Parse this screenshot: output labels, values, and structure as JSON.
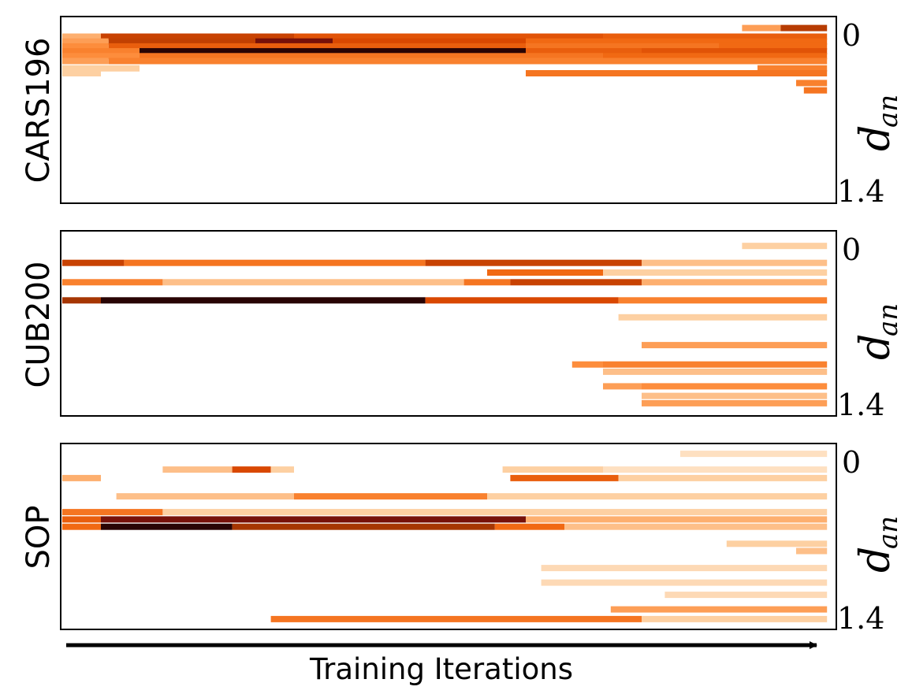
{
  "chart_data": [
    {
      "type": "heatmap",
      "panel": "CARS196",
      "xlabel": "Training Iterations",
      "ylabel_main": "d",
      "ylabel_sub": "an",
      "y_ticks": [
        "0",
        "1.4"
      ],
      "ylim": [
        0,
        1.4
      ],
      "rows": [
        {
          "y": 0.03,
          "segs": [
            [
              0.88,
              0.93,
              0.3
            ],
            [
              0.93,
              0.99,
              0.75
            ]
          ]
        },
        {
          "y": 0.1,
          "segs": [
            [
              0.0,
              0.05,
              0.25
            ],
            [
              0.05,
              0.3,
              0.7
            ],
            [
              0.3,
              0.7,
              0.6
            ],
            [
              0.7,
              0.99,
              0.55
            ]
          ]
        },
        {
          "y": 0.14,
          "segs": [
            [
              0.0,
              0.06,
              0.3
            ],
            [
              0.06,
              0.25,
              0.72
            ],
            [
              0.25,
              0.35,
              0.9
            ],
            [
              0.35,
              0.6,
              0.65
            ],
            [
              0.6,
              0.99,
              0.5
            ]
          ]
        },
        {
          "y": 0.18,
          "segs": [
            [
              0.0,
              0.06,
              0.35
            ],
            [
              0.06,
              0.6,
              0.55
            ],
            [
              0.6,
              0.85,
              0.45
            ],
            [
              0.85,
              0.99,
              0.5
            ]
          ]
        },
        {
          "y": 0.22,
          "segs": [
            [
              0.0,
              0.1,
              0.4
            ],
            [
              0.1,
              0.6,
              0.97
            ],
            [
              0.6,
              0.75,
              0.55
            ],
            [
              0.75,
              0.99,
              0.6
            ]
          ]
        },
        {
          "y": 0.26,
          "segs": [
            [
              0.0,
              0.1,
              0.35
            ],
            [
              0.1,
              0.7,
              0.45
            ],
            [
              0.7,
              0.99,
              0.5
            ]
          ]
        },
        {
          "y": 0.3,
          "segs": [
            [
              0.0,
              0.06,
              0.3
            ],
            [
              0.06,
              0.99,
              0.4
            ]
          ]
        },
        {
          "y": 0.36,
          "segs": [
            [
              0.0,
              0.1,
              0.15
            ],
            [
              0.9,
              0.99,
              0.4
            ]
          ]
        },
        {
          "y": 0.4,
          "segs": [
            [
              0.0,
              0.05,
              0.15
            ],
            [
              0.6,
              0.99,
              0.45
            ]
          ]
        },
        {
          "y": 0.48,
          "segs": [
            [
              0.95,
              0.99,
              0.4
            ]
          ]
        },
        {
          "y": 0.54,
          "segs": [
            [
              0.96,
              0.99,
              0.45
            ]
          ]
        }
      ]
    },
    {
      "type": "heatmap",
      "panel": "CUB200",
      "xlabel": "Training Iterations",
      "ylabel_main": "d",
      "ylabel_sub": "an",
      "y_ticks": [
        "0",
        "1.4"
      ],
      "ylim": [
        0,
        1.4
      ],
      "rows": [
        {
          "y": 0.06,
          "segs": [
            [
              0.88,
              0.99,
              0.15
            ]
          ]
        },
        {
          "y": 0.2,
          "segs": [
            [
              0.0,
              0.08,
              0.7
            ],
            [
              0.08,
              0.47,
              0.45
            ],
            [
              0.47,
              0.75,
              0.7
            ],
            [
              0.75,
              0.99,
              0.2
            ]
          ]
        },
        {
          "y": 0.28,
          "segs": [
            [
              0.55,
              0.7,
              0.5
            ],
            [
              0.7,
              0.99,
              0.15
            ]
          ]
        },
        {
          "y": 0.36,
          "segs": [
            [
              0.0,
              0.13,
              0.4
            ],
            [
              0.13,
              0.52,
              0.2
            ],
            [
              0.52,
              0.58,
              0.45
            ],
            [
              0.58,
              0.75,
              0.7
            ],
            [
              0.75,
              0.99,
              0.25
            ]
          ]
        },
        {
          "y": 0.51,
          "segs": [
            [
              0.0,
              0.05,
              0.8
            ],
            [
              0.05,
              0.47,
              0.97
            ],
            [
              0.47,
              0.72,
              0.65
            ],
            [
              0.72,
              0.99,
              0.4
            ]
          ]
        },
        {
          "y": 0.65,
          "segs": [
            [
              0.72,
              0.99,
              0.15
            ]
          ]
        },
        {
          "y": 0.88,
          "segs": [
            [
              0.75,
              0.99,
              0.3
            ]
          ]
        },
        {
          "y": 1.04,
          "segs": [
            [
              0.66,
              0.7,
              0.35
            ],
            [
              0.7,
              0.99,
              0.4
            ]
          ]
        },
        {
          "y": 1.1,
          "segs": [
            [
              0.7,
              0.99,
              0.2
            ]
          ]
        },
        {
          "y": 1.22,
          "segs": [
            [
              0.7,
              0.75,
              0.3
            ],
            [
              0.75,
              0.99,
              0.35
            ]
          ]
        },
        {
          "y": 1.3,
          "segs": [
            [
              0.75,
              0.99,
              0.2
            ]
          ]
        },
        {
          "y": 1.36,
          "segs": [
            [
              0.75,
              0.99,
              0.3
            ]
          ]
        }
      ]
    },
    {
      "type": "heatmap",
      "panel": "SOP",
      "xlabel": "Training Iterations",
      "ylabel_main": "d",
      "ylabel_sub": "an",
      "y_ticks": [
        "0",
        "1.4"
      ],
      "ylim": [
        0,
        1.4
      ],
      "rows": [
        {
          "y": 0.02,
          "segs": [
            [
              0.8,
              0.99,
              0.1
            ]
          ]
        },
        {
          "y": 0.15,
          "segs": [
            [
              0.13,
              0.22,
              0.2
            ],
            [
              0.22,
              0.27,
              0.65
            ],
            [
              0.27,
              0.3,
              0.15
            ],
            [
              0.57,
              0.7,
              0.15
            ],
            [
              0.7,
              0.99,
              0.1
            ]
          ]
        },
        {
          "y": 0.22,
          "segs": [
            [
              0.0,
              0.05,
              0.25
            ],
            [
              0.58,
              0.72,
              0.55
            ],
            [
              0.72,
              0.99,
              0.15
            ]
          ]
        },
        {
          "y": 0.37,
          "segs": [
            [
              0.07,
              0.3,
              0.2
            ],
            [
              0.3,
              0.55,
              0.4
            ],
            [
              0.55,
              0.99,
              0.15
            ]
          ]
        },
        {
          "y": 0.5,
          "segs": [
            [
              0.0,
              0.13,
              0.45
            ],
            [
              0.13,
              0.99,
              0.15
            ]
          ]
        },
        {
          "y": 0.56,
          "segs": [
            [
              0.0,
              0.05,
              0.55
            ],
            [
              0.05,
              0.6,
              0.9
            ],
            [
              0.6,
              0.99,
              0.25
            ]
          ]
        },
        {
          "y": 0.62,
          "segs": [
            [
              0.0,
              0.05,
              0.5
            ],
            [
              0.05,
              0.22,
              0.97
            ],
            [
              0.22,
              0.56,
              0.8
            ],
            [
              0.56,
              0.65,
              0.5
            ],
            [
              0.65,
              0.99,
              0.2
            ]
          ]
        },
        {
          "y": 0.76,
          "segs": [
            [
              0.86,
              0.99,
              0.15
            ]
          ]
        },
        {
          "y": 0.82,
          "segs": [
            [
              0.95,
              0.99,
              0.2
            ]
          ]
        },
        {
          "y": 0.96,
          "segs": [
            [
              0.62,
              0.99,
              0.12
            ]
          ]
        },
        {
          "y": 1.08,
          "segs": [
            [
              0.62,
              0.99,
              0.12
            ]
          ]
        },
        {
          "y": 1.18,
          "segs": [
            [
              0.78,
              0.99,
              0.12
            ]
          ]
        },
        {
          "y": 1.3,
          "segs": [
            [
              0.71,
              0.99,
              0.3
            ]
          ]
        },
        {
          "y": 1.38,
          "segs": [
            [
              0.27,
              0.75,
              0.45
            ],
            [
              0.75,
              0.99,
              0.15
            ]
          ]
        }
      ]
    }
  ]
}
